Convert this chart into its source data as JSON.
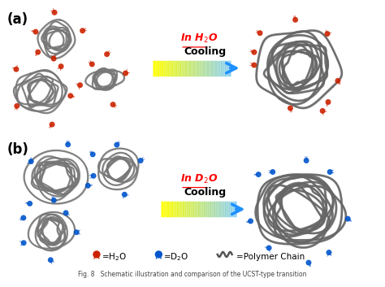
{
  "label_a": "(a)",
  "label_b": "(b)",
  "arrow_label_a": "In H$_2$O",
  "arrow_label_b": "In D$_2$O",
  "cooling": "Cooling",
  "background_color": "#ffffff",
  "arrow_color": "#1e90ff",
  "label_color": "#000000",
  "red_color": "#ff0000",
  "blob_color": "#777777",
  "blob_shadow": "#333333",
  "molecule_color_a": "#cc2200",
  "molecule_color_b": "#0055cc",
  "legend_text_h2o": "=H$_2$O",
  "legend_text_d2o": "=D$_2$O",
  "legend_text_polymer": "=Polymer Chain",
  "fig_caption": "Fig. 8   Schematic illustration and comparison of the UCST-type transition"
}
